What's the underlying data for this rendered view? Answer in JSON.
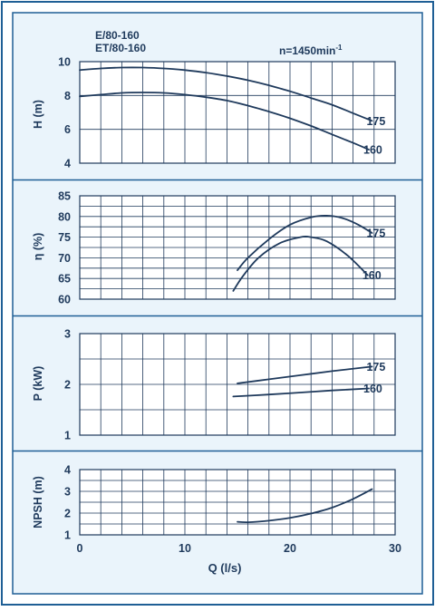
{
  "header": {
    "model_line_1": "E/80-160",
    "model_line_2": "ET/80-160",
    "speed_base": "n=1450min",
    "speed_sup": "-1"
  },
  "colors": {
    "frame": "#1f5f95",
    "panel_bg": "#eaf4fb",
    "grid_bg": "#ffffff",
    "grid_line": "#1f3a5c",
    "curve": "#1f3a5c",
    "text": "#1f3a5c"
  },
  "x_axis": {
    "label": "Q (l/s)",
    "range": [
      0,
      30
    ],
    "ticks": [
      0,
      10,
      20,
      30
    ],
    "gridlines": [
      0,
      2,
      4,
      6,
      8,
      10,
      12,
      14,
      16,
      18,
      20,
      22,
      24,
      26,
      28,
      30
    ]
  },
  "chart_data": [
    {
      "type": "line",
      "ylabel": "H (m)",
      "ylim": [
        4,
        10
      ],
      "yticks": [
        4,
        6,
        8,
        10
      ],
      "ygrid": [
        4,
        6,
        8,
        10
      ],
      "grid": true,
      "series": [
        {
          "name": "175",
          "x": [
            0,
            2,
            4,
            6,
            8,
            10,
            12,
            14,
            16,
            18,
            20,
            22,
            24,
            26,
            27.8
          ],
          "y": [
            9.5,
            9.6,
            9.65,
            9.65,
            9.6,
            9.5,
            9.35,
            9.15,
            8.9,
            8.6,
            8.25,
            7.85,
            7.45,
            6.95,
            6.5
          ]
        },
        {
          "name": "160",
          "x": [
            0,
            2,
            4,
            6,
            8,
            10,
            12,
            14,
            16,
            18,
            20,
            22,
            24,
            26,
            27.5
          ],
          "y": [
            7.95,
            8.05,
            8.15,
            8.18,
            8.15,
            8.05,
            7.9,
            7.7,
            7.4,
            7.05,
            6.65,
            6.2,
            5.7,
            5.2,
            4.8
          ]
        }
      ]
    },
    {
      "type": "line",
      "ylabel": "η (%)",
      "ylim": [
        60,
        85
      ],
      "yticks": [
        60,
        65,
        70,
        75,
        80,
        85
      ],
      "ygrid": [
        60,
        62.5,
        65,
        67.5,
        70,
        72.5,
        75,
        77.5,
        80,
        82.5,
        85
      ],
      "grid": true,
      "series": [
        {
          "name": "175",
          "x": [
            15,
            16,
            18,
            20,
            22,
            23.5,
            25,
            26.5,
            27.8
          ],
          "y": [
            67,
            70,
            74.5,
            78,
            79.8,
            80.2,
            79.6,
            78,
            76
          ]
        },
        {
          "name": "160",
          "x": [
            14.6,
            15.5,
            17,
            19,
            21,
            22,
            23.5,
            25.5,
            27.4
          ],
          "y": [
            62,
            65.5,
            70,
            73.5,
            75,
            75,
            74,
            70.5,
            65.8
          ]
        }
      ]
    },
    {
      "type": "line",
      "ylabel": "P (kW)",
      "ylim": [
        1,
        3
      ],
      "yticks": [
        1,
        2,
        3
      ],
      "ygrid": [
        1,
        1.5,
        2,
        2.5,
        3
      ],
      "grid": true,
      "series": [
        {
          "name": "175",
          "x": [
            15,
            18,
            21,
            24,
            27.8
          ],
          "y": [
            2.02,
            2.1,
            2.18,
            2.26,
            2.35
          ]
        },
        {
          "name": "160",
          "x": [
            14.6,
            18,
            21,
            24,
            27.5
          ],
          "y": [
            1.76,
            1.8,
            1.84,
            1.88,
            1.92
          ]
        }
      ]
    },
    {
      "type": "line",
      "ylabel": "NPSH (m)",
      "ylim": [
        1,
        4
      ],
      "yticks": [
        1,
        2,
        3,
        4
      ],
      "ygrid": [
        1,
        1.5,
        2,
        2.5,
        3,
        3.5,
        4
      ],
      "grid": true,
      "series": [
        {
          "x": [
            15,
            16,
            18,
            20,
            22,
            24,
            26,
            27.8
          ],
          "y": [
            1.6,
            1.58,
            1.65,
            1.78,
            1.98,
            2.25,
            2.65,
            3.1
          ]
        }
      ]
    }
  ]
}
